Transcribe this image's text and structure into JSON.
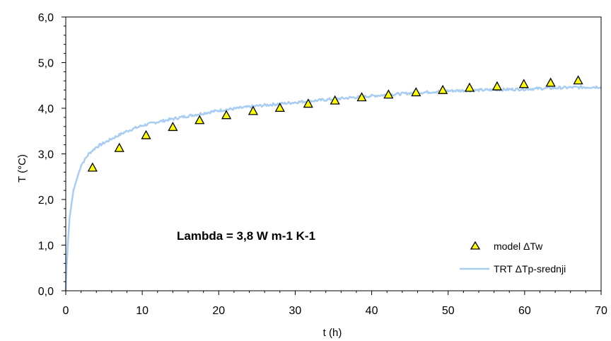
{
  "chart_data": {
    "type": "scatter",
    "xlabel": "t (h)",
    "ylabel": "T (°C)",
    "xlim": [
      0,
      70
    ],
    "ylim": [
      0,
      6
    ],
    "x_ticks": [
      "0",
      "10",
      "20",
      "30",
      "40",
      "50",
      "60",
      "70"
    ],
    "y_ticks": [
      "0,0",
      "1,0",
      "2,0",
      "3,0",
      "4,0",
      "5,0",
      "6,0"
    ],
    "annotation": "Lambda = 3,8 W m-1 K-1",
    "grid": false,
    "legend_position": "bottom-right",
    "series": [
      {
        "name": "model ΔTw",
        "kind": "scatter",
        "marker": "triangle",
        "color": "#ffff00",
        "x": [
          3.5,
          7.0,
          10.5,
          14.0,
          17.5,
          21.0,
          24.5,
          28.0,
          31.7,
          35.2,
          38.7,
          42.2,
          45.8,
          49.3,
          52.8,
          56.4,
          59.9,
          63.4,
          67.0
        ],
        "y": [
          2.7,
          3.13,
          3.41,
          3.59,
          3.74,
          3.85,
          3.94,
          4.01,
          4.1,
          4.17,
          4.24,
          4.3,
          4.35,
          4.4,
          4.45,
          4.48,
          4.53,
          4.56,
          4.61
        ]
      },
      {
        "name": "TRT ΔTp-srednji",
        "kind": "line",
        "color": "#a9cdf2",
        "x": [
          0,
          0.1,
          0.3,
          0.5,
          1.0,
          2.0,
          3.0,
          4.0,
          6.0,
          8.0,
          10.0,
          12.0,
          15.0,
          20.0,
          25.0,
          30.0,
          35.0,
          40.0,
          45.0,
          50.0,
          55.0,
          60.0,
          65.0,
          70.0
        ],
        "y": [
          0.0,
          0.5,
          1.1,
          1.6,
          2.2,
          2.75,
          3.0,
          3.15,
          3.33,
          3.5,
          3.62,
          3.7,
          3.8,
          3.95,
          4.05,
          4.13,
          4.2,
          4.27,
          4.33,
          4.38,
          4.4,
          4.42,
          4.45,
          4.47
        ]
      }
    ]
  }
}
